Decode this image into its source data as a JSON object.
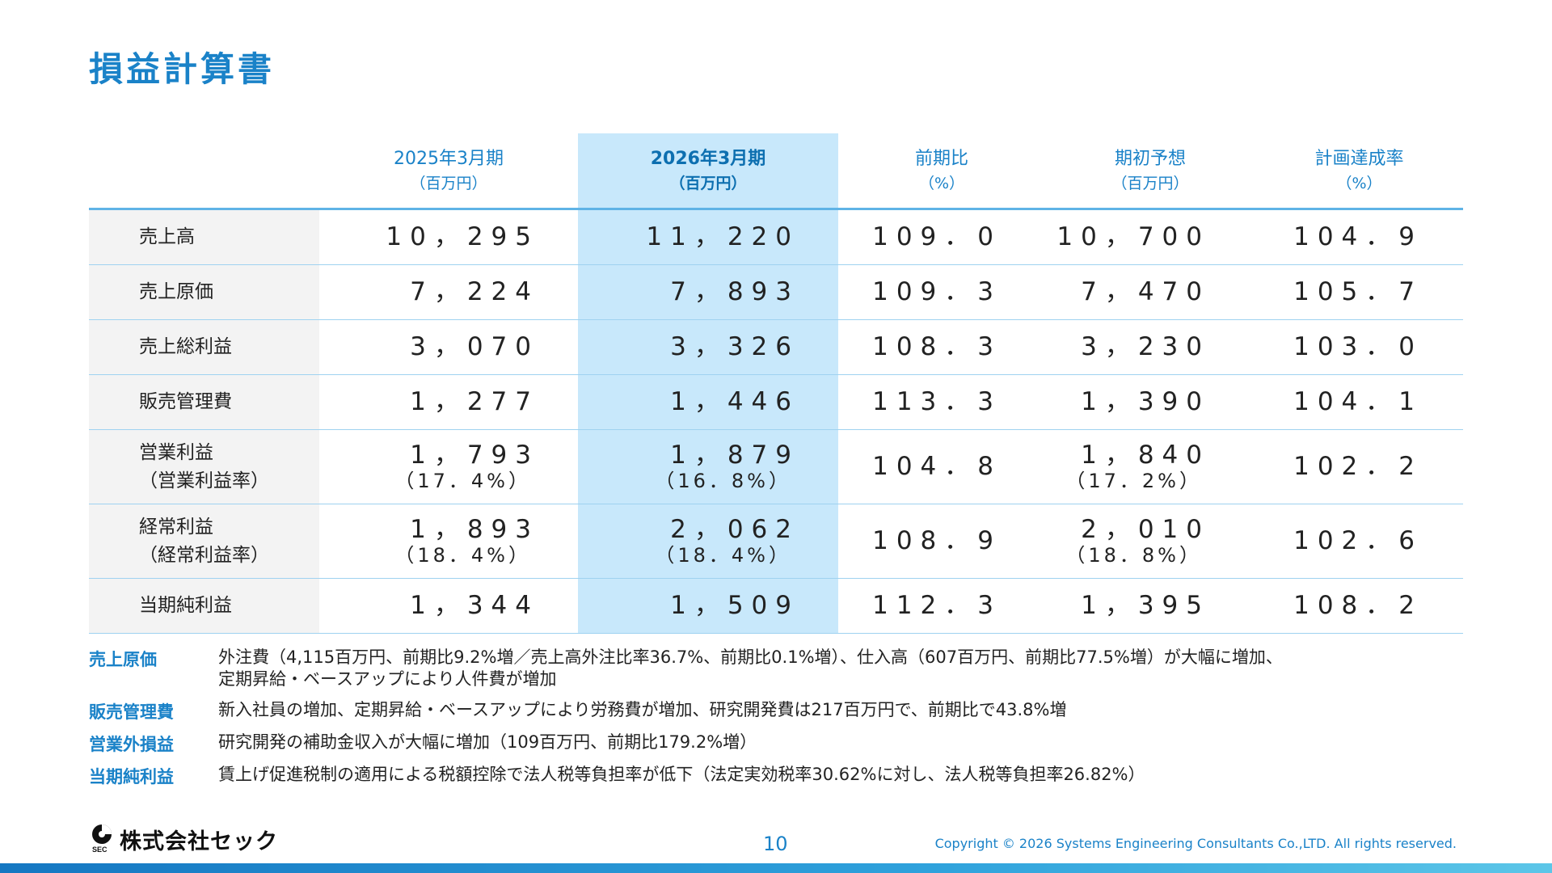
{
  "page": {
    "title": "損益計算書",
    "page_number": "10",
    "copyright": "Copyright © 2026 Systems Engineering Consultants Co.,LTD. All rights reserved.",
    "logo_text": "株式会社セック",
    "logo_sub": "SEC"
  },
  "table": {
    "headers": [
      {
        "label": "2025年3月期",
        "unit": "（百万円）"
      },
      {
        "label": "2026年3月期",
        "unit": "（百万円）"
      },
      {
        "label": "前期比",
        "unit": "（%）"
      },
      {
        "label": "期初予想",
        "unit": "（百万円）"
      },
      {
        "label": "計画達成率",
        "unit": "（%）"
      }
    ],
    "rows": [
      {
        "label": "売上高",
        "sublabel": "",
        "cells": [
          {
            "main": "10，295",
            "sub": ""
          },
          {
            "main": "11，220",
            "sub": ""
          },
          {
            "main": "109．0",
            "sub": ""
          },
          {
            "main": "10，700",
            "sub": ""
          },
          {
            "main": "104．9",
            "sub": ""
          }
        ]
      },
      {
        "label": "売上原価",
        "sublabel": "",
        "cells": [
          {
            "main": "7，224",
            "sub": ""
          },
          {
            "main": "7，893",
            "sub": ""
          },
          {
            "main": "109．3",
            "sub": ""
          },
          {
            "main": "7，470",
            "sub": ""
          },
          {
            "main": "105．7",
            "sub": ""
          }
        ]
      },
      {
        "label": "売上総利益",
        "sublabel": "",
        "cells": [
          {
            "main": "3，070",
            "sub": ""
          },
          {
            "main": "3，326",
            "sub": ""
          },
          {
            "main": "108．3",
            "sub": ""
          },
          {
            "main": "3，230",
            "sub": ""
          },
          {
            "main": "103．0",
            "sub": ""
          }
        ]
      },
      {
        "label": "販売管理費",
        "sublabel": "",
        "cells": [
          {
            "main": "1，277",
            "sub": ""
          },
          {
            "main": "1，446",
            "sub": ""
          },
          {
            "main": "113．3",
            "sub": ""
          },
          {
            "main": "1，390",
            "sub": ""
          },
          {
            "main": "104．1",
            "sub": ""
          }
        ]
      },
      {
        "label": "営業利益",
        "sublabel": "（営業利益率）",
        "cells": [
          {
            "main": "1，793",
            "sub": "（17．4%）"
          },
          {
            "main": "1，879",
            "sub": "（16．8%）"
          },
          {
            "main": "104．8",
            "sub": ""
          },
          {
            "main": "1，840",
            "sub": "（17．2%）"
          },
          {
            "main": "102．2",
            "sub": ""
          }
        ]
      },
      {
        "label": "経常利益",
        "sublabel": "（経常利益率）",
        "cells": [
          {
            "main": "1，893",
            "sub": "（18．4%）"
          },
          {
            "main": "2，062",
            "sub": "（18．4%）"
          },
          {
            "main": "108．9",
            "sub": ""
          },
          {
            "main": "2，010",
            "sub": "（18．8%）"
          },
          {
            "main": "102．6",
            "sub": ""
          }
        ]
      },
      {
        "label": "当期純利益",
        "sublabel": "",
        "cells": [
          {
            "main": "1，344",
            "sub": ""
          },
          {
            "main": "1，509",
            "sub": ""
          },
          {
            "main": "112．3",
            "sub": ""
          },
          {
            "main": "1，395",
            "sub": ""
          },
          {
            "main": "108．2",
            "sub": ""
          }
        ]
      }
    ]
  },
  "notes": [
    {
      "label": "売上原価",
      "lines": [
        "外注費（4,115百万円、前期比9.2%増／売上高外注比率36.7%、前期比0.1%増）、仕入高（607百万円、前期比77.5%増）が大幅に増加、",
        "定期昇給・ベースアップにより人件費が増加"
      ]
    },
    {
      "label": "販売管理費",
      "lines": [
        "新入社員の増加、定期昇給・ベースアップにより労務費が増加、研究開発費は217百万円で、前期比で43.8%増"
      ]
    },
    {
      "label": "営業外損益",
      "lines": [
        "研究開発の補助金収入が大幅に増加（109百万円、前期比179.2%増）"
      ]
    },
    {
      "label": "当期純利益",
      "lines": [
        "賃上げ促進税制の適用による税額控除で法人税等負担率が低下（法定実効税率30.62%に対し、法人税等負担率26.82%）"
      ]
    }
  ],
  "colors": {
    "accent": "#1a82c8",
    "highlight": "#c8e8fb",
    "rule": "#9fd2f0"
  }
}
